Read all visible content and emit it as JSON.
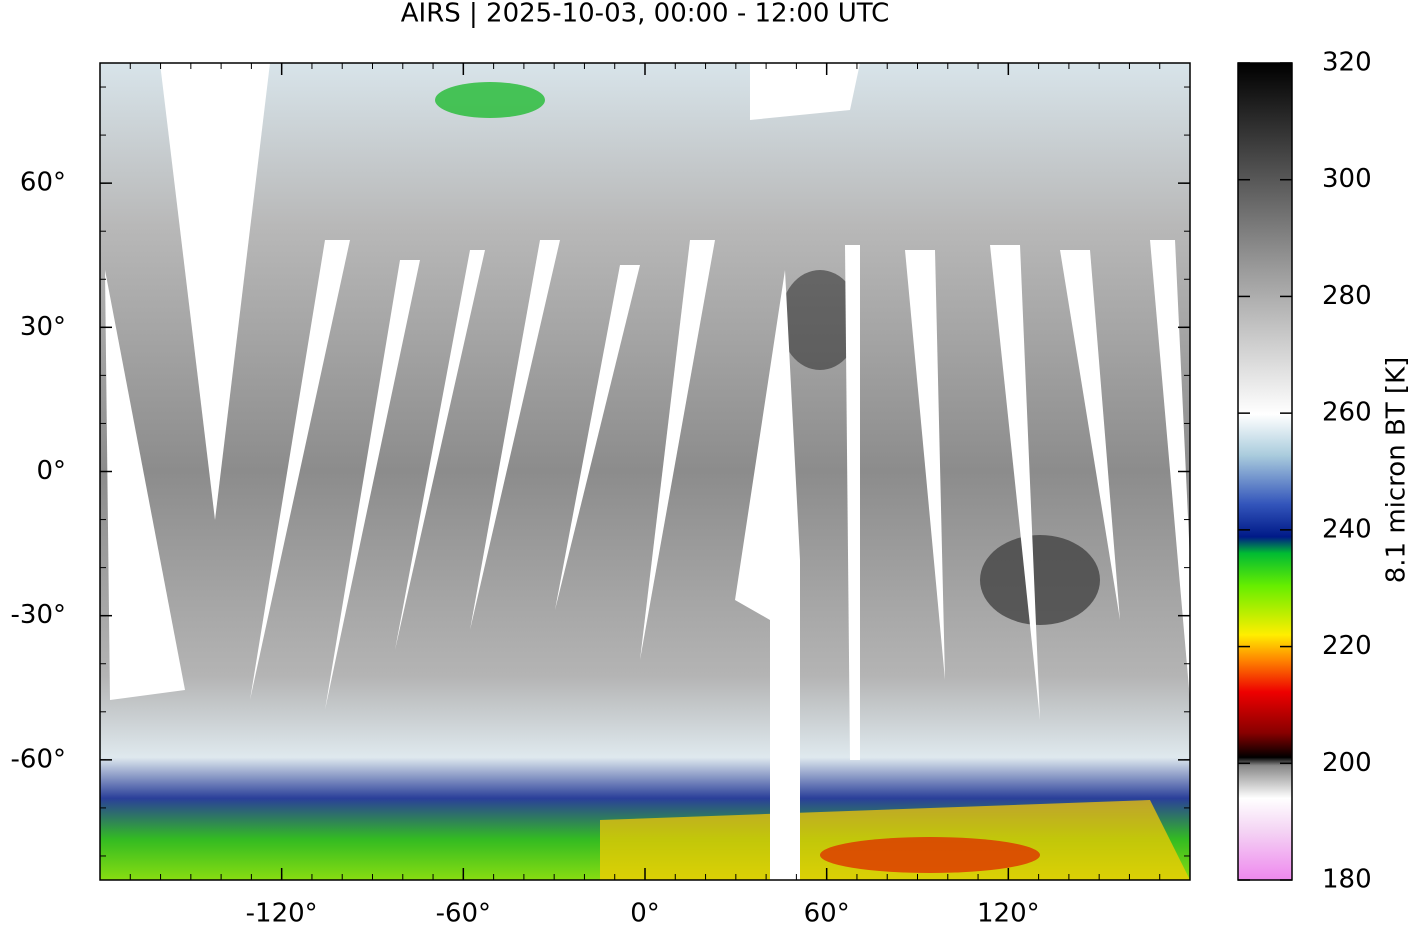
{
  "chart_data": {
    "type": "map",
    "title": "AIRS | 2025-10-03, 00:00 - 12:00 UTC",
    "xlim": [
      -180,
      180
    ],
    "ylim": [
      -85,
      85
    ],
    "xticks": [
      {
        "value": -120,
        "label": "-120°"
      },
      {
        "value": -60,
        "label": "-60°"
      },
      {
        "value": 0,
        "label": "0°"
      },
      {
        "value": 60,
        "label": "60°"
      },
      {
        "value": 120,
        "label": "120°"
      }
    ],
    "yticks": [
      {
        "value": 60,
        "label": "60°"
      },
      {
        "value": 30,
        "label": "30°"
      },
      {
        "value": 0,
        "label": "0°"
      },
      {
        "value": -30,
        "label": "-30°"
      },
      {
        "value": -60,
        "label": "-60°"
      }
    ],
    "colorbar": {
      "label": "8.1 micron BT [K]",
      "lim": [
        180,
        320
      ],
      "ticks": [
        180,
        200,
        220,
        240,
        260,
        280,
        300,
        320
      ]
    }
  }
}
